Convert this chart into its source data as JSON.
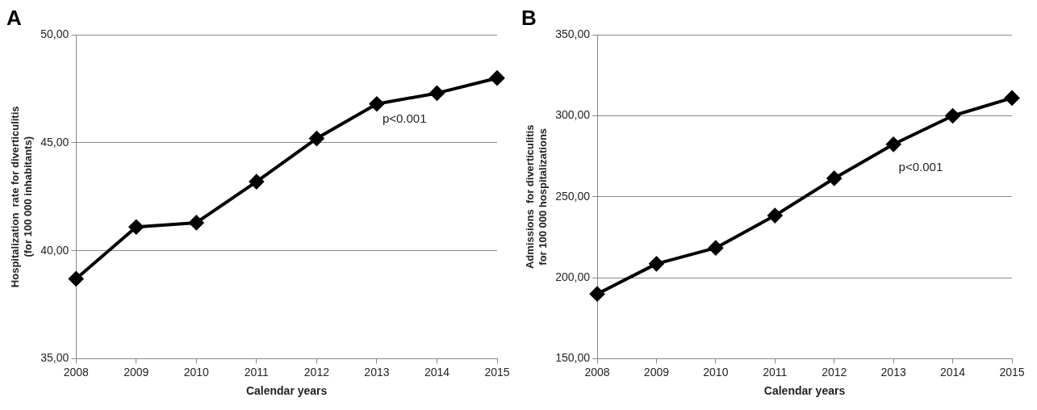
{
  "chart_data": [
    {
      "type": "line",
      "title": "A",
      "xlabel": "Calendar years",
      "ylabel": [
        "Hospitalization  rate for diverticulitis",
        "(for 100 000 inhabitants)"
      ],
      "categories": [
        "2008",
        "2009",
        "2010",
        "2011",
        "2012",
        "2013",
        "2014",
        "2015"
      ],
      "series": [
        {
          "color": "#000000",
          "values": [
            38.7,
            41.1,
            41.3,
            43.2,
            45.2,
            46.8,
            47.3,
            48.0
          ]
        }
      ],
      "ylim": [
        35,
        50
      ],
      "yticks": [
        {
          "value": 35,
          "label": "35,00"
        },
        {
          "value": 40,
          "label": "40,00"
        },
        {
          "value": 45,
          "label": "45,00"
        },
        {
          "value": 50,
          "label": "50,00"
        }
      ],
      "grid": "y",
      "legend": false,
      "marker": "diamond",
      "line_style": "solid",
      "annotations": [
        "p<0.001"
      ]
    },
    {
      "type": "line",
      "title": "B",
      "xlabel": "Calendar years",
      "ylabel": [
        "Admissions  for diverticulitis",
        "for 100 000 hospitalizations"
      ],
      "categories": [
        "2008",
        "2009",
        "2010",
        "2011",
        "2012",
        "2013",
        "2014",
        "2015"
      ],
      "series": [
        {
          "color": "#000000",
          "values": [
            190,
            208.6,
            218.4,
            238.4,
            261.4,
            282.4,
            300,
            311
          ]
        }
      ],
      "ylim": [
        150,
        350
      ],
      "yticks": [
        {
          "value": 150,
          "label": "150,00"
        },
        {
          "value": 200,
          "label": "200,00"
        },
        {
          "value": 250,
          "label": "250,00"
        },
        {
          "value": 300,
          "label": "300,00"
        },
        {
          "value": 350,
          "label": "350,00"
        }
      ],
      "grid": "y",
      "legend": false,
      "marker": "diamond",
      "line_style": "solid",
      "annotations": [
        "p<0.001"
      ]
    }
  ]
}
